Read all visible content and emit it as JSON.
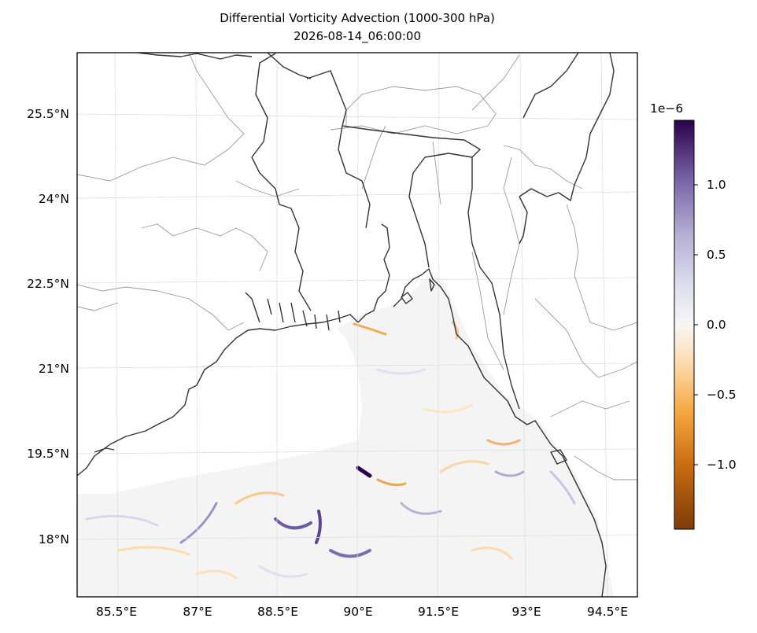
{
  "title": "Differential Vorticity Advection (1000-300 hPa)",
  "subtitle": "2026-08-14_06:00:00",
  "lat_ticks": [
    "25.5°N",
    "24°N",
    "22.5°N",
    "21°N",
    "19.5°N",
    "18°N"
  ],
  "lon_ticks": [
    "85.5°E",
    "87°E",
    "88.5°E",
    "90°E",
    "91.5°E",
    "93°E",
    "94.5°E"
  ],
  "colorbar": {
    "exponent_label": "1e−6",
    "ticks": [
      "1.0",
      "0.5",
      "0.0",
      "−0.5",
      "−1.0"
    ],
    "range": [
      -1.45,
      1.45
    ],
    "colormap": "PuOr",
    "colors": [
      "#7f3b08",
      "#e08214",
      "#fdb863",
      "#fee0b6",
      "#f7f7f7",
      "#d8daeb",
      "#b2abd2",
      "#8073ac",
      "#2d004b"
    ]
  },
  "map": {
    "extent": {
      "lon": [
        84.85,
        94.85
      ],
      "lat": [
        17.0,
        26.5
      ]
    },
    "coastline_color": "#333333",
    "boundary_color": "#999999",
    "gridline_color": "#dddddd",
    "data_fill_background": "#f5f5f5"
  }
}
